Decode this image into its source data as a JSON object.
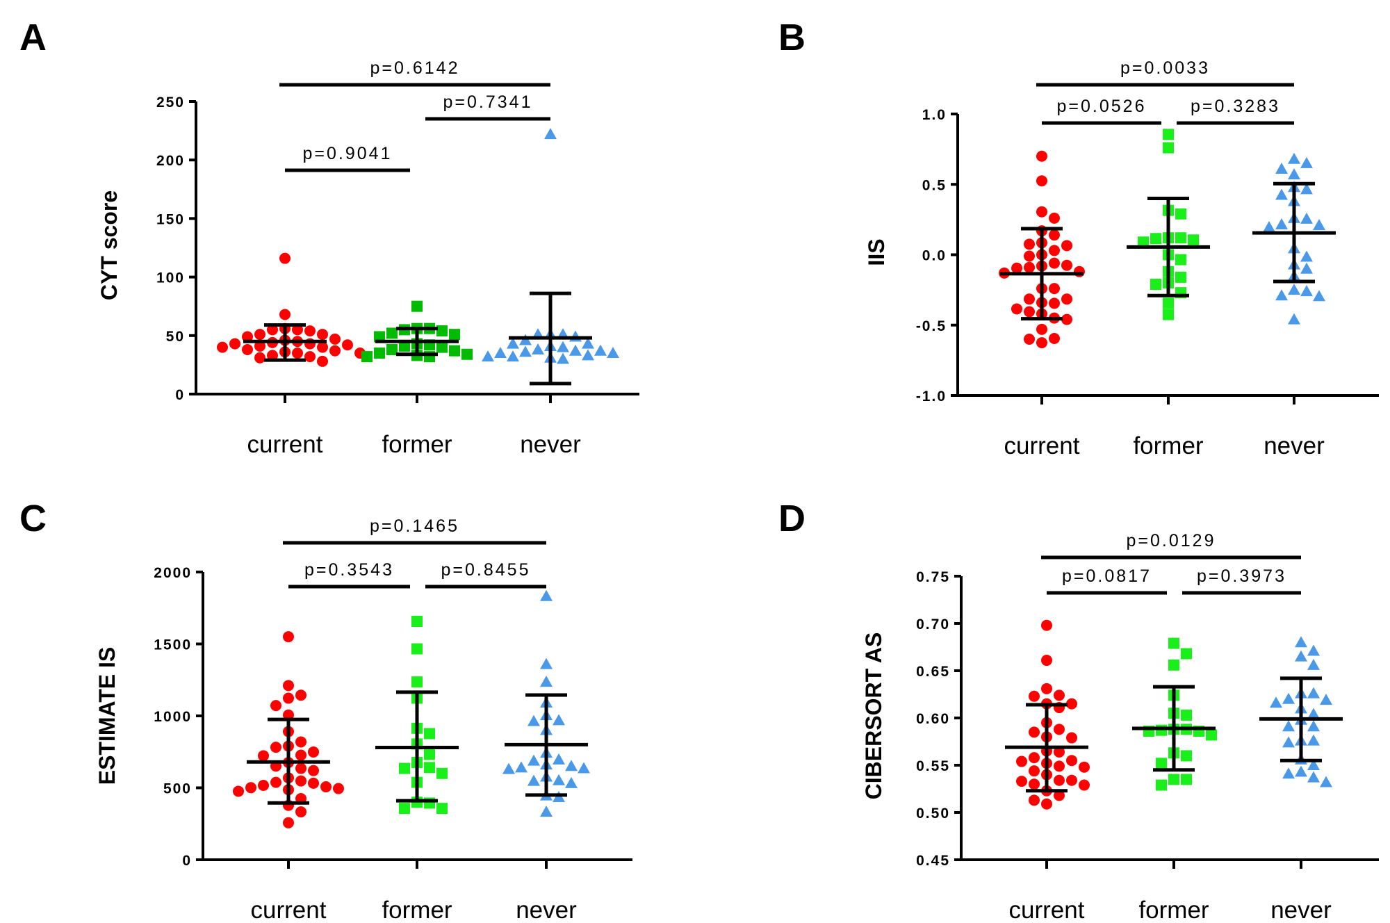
{
  "colors": {
    "current": "#ff0000",
    "former_A": "#00bb00",
    "former": "#19f019",
    "never": "#4a98e8",
    "lines": "#000000"
  },
  "chart_data": [
    {
      "type": "scatter",
      "panel": "A",
      "ylabel": "CYT score",
      "ylim": [
        0,
        250
      ],
      "yticks": [
        "0",
        "50",
        "100",
        "150",
        "200",
        "250"
      ],
      "ytick_values": [
        0,
        50,
        100,
        150,
        200,
        250
      ],
      "categories": [
        "current",
        "former",
        "never"
      ],
      "markers": [
        "circle",
        "square",
        "triangle"
      ],
      "groups": [
        {
          "values": [
            116,
            68,
            55,
            55,
            56,
            54,
            51,
            51,
            49,
            47,
            46,
            45,
            44,
            43,
            43,
            42,
            41,
            40,
            40,
            38,
            37,
            36,
            35,
            35,
            33,
            32,
            31,
            28
          ],
          "mean": 45,
          "sd_upper": 59,
          "sd_lower": 29
        },
        {
          "values": [
            75,
            56,
            56,
            55,
            54,
            52,
            51,
            49,
            43,
            42,
            41,
            40,
            38,
            37,
            35,
            34,
            32,
            32,
            33
          ],
          "mean": 45,
          "sd_upper": 56,
          "sd_lower": 34
        },
        {
          "values": [
            222,
            51,
            51,
            51,
            49,
            43,
            41,
            38,
            37,
            36,
            35,
            33,
            32,
            31,
            30,
            32,
            35,
            37,
            40,
            43,
            46
          ],
          "mean": 48,
          "sd_upper": 86,
          "sd_lower": 9
        }
      ],
      "comparisons": [
        {
          "label": "p=0.6142",
          "from": "current",
          "to": "never"
        },
        {
          "label": "p=0.7341",
          "from": "former",
          "to": "never"
        },
        {
          "label": "p=0.9041",
          "from": "current",
          "to": "former"
        }
      ]
    },
    {
      "type": "scatter",
      "panel": "B",
      "ylabel": "IIS",
      "ylim": [
        -1.0,
        1.0
      ],
      "yticks": [
        "-1.0",
        "-0.5",
        "0.0",
        "0.5",
        "1.0"
      ],
      "ytick_values": [
        -1.0,
        -0.5,
        0.0,
        0.5,
        1.0
      ],
      "categories": [
        "current",
        "former",
        "never"
      ],
      "markers": [
        "circle",
        "square",
        "triangle"
      ],
      "groups": [
        {
          "values": [
            0.7,
            0.525,
            0.305,
            0.26,
            0.17,
            0.14,
            0.085,
            0.065,
            0.075,
            0.03,
            0.0,
            -0.01,
            -0.06,
            -0.075,
            -0.095,
            -0.09,
            -0.08,
            -0.12,
            -0.13,
            -0.24,
            -0.24,
            -0.315,
            -0.315,
            -0.34,
            -0.345,
            -0.385,
            -0.405,
            -0.42,
            -0.45,
            -0.46,
            -0.53,
            -0.595,
            -0.6,
            -0.625
          ],
          "mean": -0.135,
          "sd_upper": 0.185,
          "sd_lower": -0.455
        },
        {
          "values": [
            0.855,
            0.76,
            0.315,
            0.29,
            0.12,
            0.12,
            0.115,
            0.105,
            0.09,
            0.0,
            -0.035,
            -0.12,
            -0.16,
            -0.21,
            -0.2,
            -0.27,
            -0.345,
            -0.425
          ],
          "mean": 0.055,
          "sd_upper": 0.4,
          "sd_lower": -0.29
        },
        {
          "values": [
            0.65,
            0.57,
            0.61,
            0.68,
            0.48,
            0.465,
            0.425,
            0.38,
            0.26,
            0.255,
            0.215,
            0.21,
            0.195,
            0.045,
            -0.015,
            -0.07,
            -0.1,
            -0.15,
            -0.25,
            -0.29,
            -0.295,
            -0.46,
            -0.26
          ],
          "mean": 0.155,
          "sd_upper": 0.505,
          "sd_lower": -0.19
        }
      ],
      "comparisons": [
        {
          "label": "p=0.0033",
          "from": "current",
          "to": "never"
        },
        {
          "label": "p=0.0526",
          "from": "current",
          "to": "former"
        },
        {
          "label": "p=0.3283",
          "from": "former",
          "to": "never"
        }
      ]
    },
    {
      "type": "scatter",
      "panel": "C",
      "ylabel": "ESTIMATE IS",
      "ylim": [
        0,
        2000
      ],
      "yticks": [
        "0",
        "500",
        "1000",
        "1500",
        "2000"
      ],
      "ytick_values": [
        0,
        500,
        1000,
        1500,
        2000
      ],
      "categories": [
        "current",
        "former",
        "never"
      ],
      "markers": [
        "circle",
        "square",
        "triangle"
      ],
      "groups": [
        {
          "values": [
            1550,
            1211,
            1144,
            1123,
            1072,
            1006,
            891,
            819,
            790,
            782,
            749,
            727,
            723,
            676,
            651,
            635,
            620,
            569,
            548,
            538,
            532,
            517,
            507,
            501,
            495,
            487,
            476,
            425,
            378,
            333,
            257
          ],
          "mean": 680,
          "sd_upper": 975,
          "sd_lower": 395
        },
        {
          "values": [
            1657,
            1466,
            1236,
            1123,
            914,
            877,
            805,
            733,
            676,
            641,
            635,
            600,
            538,
            400,
            394,
            357,
            357
          ],
          "mean": 780,
          "sd_upper": 1165,
          "sd_lower": 410
        },
        {
          "values": [
            1832,
            1359,
            1236,
            1092,
            1004,
            963,
            969,
            901,
            743,
            696,
            661,
            651,
            630,
            641,
            688,
            635,
            577,
            548,
            552,
            532,
            446,
            435,
            333
          ],
          "mean": 800,
          "sd_upper": 1145,
          "sd_lower": 450
        }
      ],
      "comparisons": [
        {
          "label": "p=0.1465",
          "from": "current",
          "to": "never"
        },
        {
          "label": "p=0.3543",
          "from": "current",
          "to": "former"
        },
        {
          "label": "p=0.8455",
          "from": "former",
          "to": "never"
        }
      ]
    },
    {
      "type": "scatter",
      "panel": "D",
      "ylabel": "CIBERSORT AS",
      "ylim": [
        0.45,
        0.75
      ],
      "yticks": [
        "0.45",
        "0.50",
        "0.55",
        "0.60",
        "0.65",
        "0.70",
        "0.75"
      ],
      "ytick_values": [
        0.45,
        0.5,
        0.55,
        0.6,
        0.65,
        0.7,
        0.75
      ],
      "categories": [
        "current",
        "former",
        "never"
      ],
      "markers": [
        "circle",
        "square",
        "triangle"
      ],
      "groups": [
        {
          "values": [
            0.698,
            0.661,
            0.631,
            0.624,
            0.623,
            0.615,
            0.615,
            0.611,
            0.595,
            0.588,
            0.585,
            0.58,
            0.579,
            0.565,
            0.564,
            0.558,
            0.555,
            0.554,
            0.552,
            0.549,
            0.548,
            0.544,
            0.54,
            0.534,
            0.534,
            0.533,
            0.53,
            0.529,
            0.523,
            0.518,
            0.513,
            0.509
          ],
          "mean": 0.569,
          "sd_upper": 0.614,
          "sd_lower": 0.523
        },
        {
          "values": [
            0.679,
            0.668,
            0.656,
            0.624,
            0.605,
            0.603,
            0.588,
            0.588,
            0.586,
            0.586,
            0.582,
            0.587,
            0.563,
            0.56,
            0.552,
            0.535,
            0.535,
            0.529
          ],
          "mean": 0.589,
          "sd_upper": 0.633,
          "sd_lower": 0.545
        },
        {
          "values": [
            0.68,
            0.671,
            0.665,
            0.656,
            0.626,
            0.626,
            0.62,
            0.619,
            0.616,
            0.61,
            0.604,
            0.598,
            0.591,
            0.591,
            0.576,
            0.576,
            0.574,
            0.556,
            0.55,
            0.541,
            0.543,
            0.537,
            0.532
          ],
          "mean": 0.599,
          "sd_upper": 0.642,
          "sd_lower": 0.555
        }
      ],
      "comparisons": [
        {
          "label": "p=0.0129",
          "from": "current",
          "to": "never"
        },
        {
          "label": "p=0.0817",
          "from": "current",
          "to": "former"
        },
        {
          "label": "p=0.3973",
          "from": "former",
          "to": "never"
        }
      ]
    }
  ]
}
